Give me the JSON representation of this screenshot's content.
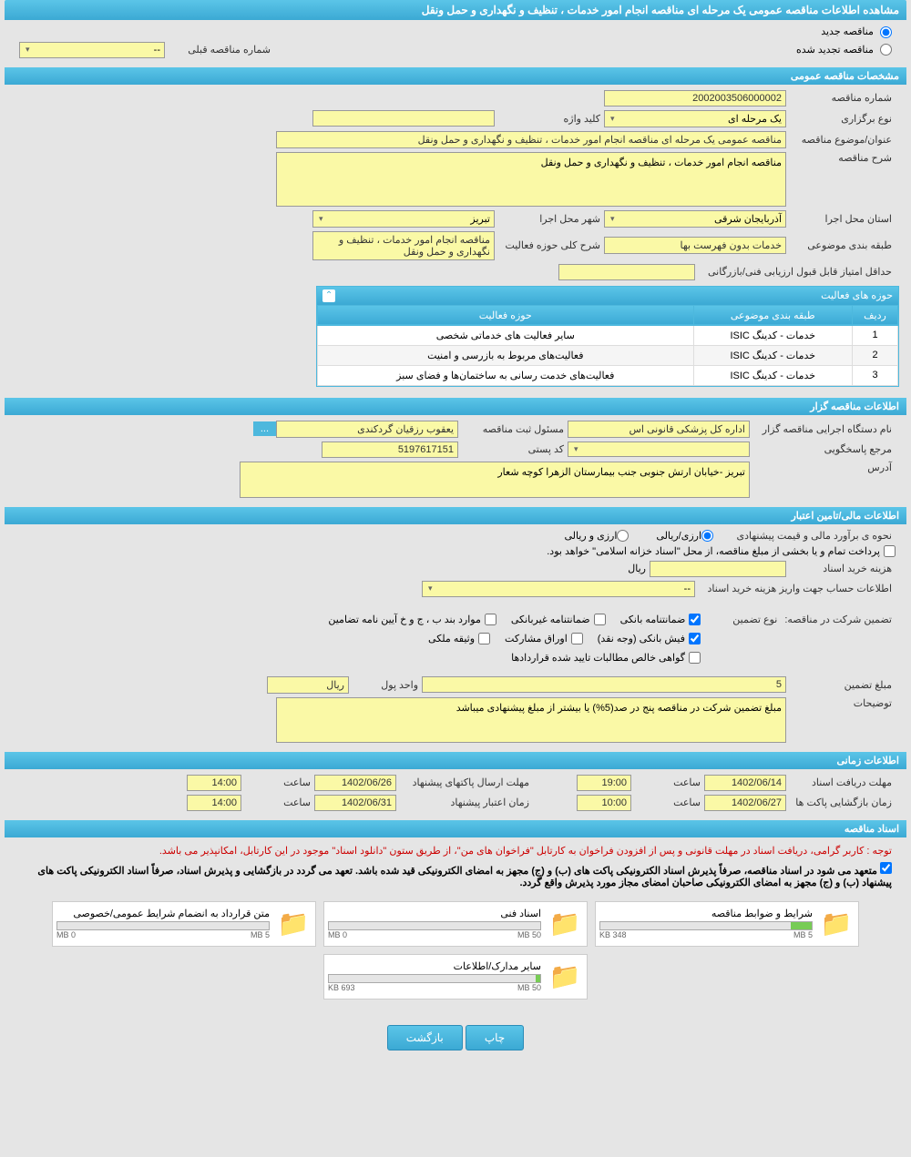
{
  "title": "مشاهده اطلاعات مناقصه عمومی یک مرحله ای مناقصه انجام امور خدمات ، تنظیف و نگهداری و حمل ونقل",
  "radios": {
    "new": "مناقصه جدید",
    "renewed": "مناقصه تجدید شده",
    "prev_label": "شماره مناقصه قبلی",
    "prev_value": "--"
  },
  "sections": {
    "general": "مشخصات مناقصه عمومی",
    "activities": "حوزه های فعالیت",
    "holder": "اطلاعات مناقصه گزار",
    "financial": "اطلاعات مالی/تامین اعتبار",
    "time": "اطلاعات زمانی",
    "docs": "اسناد مناقصه"
  },
  "general": {
    "number_label": "شماره مناقصه",
    "number": "2002003506000002",
    "type_label": "نوع برگزاری",
    "type": "یک مرحله ای",
    "keyword_label": "کلید واژه",
    "keyword": "",
    "subject_label": "عنوان/موضوع مناقصه",
    "subject": "مناقصه عمومی یک مرحله ای مناقصه انجام امور خدمات ، تنظیف و نگهداری و حمل ونقل",
    "desc_label": "شرح مناقصه",
    "desc": "مناقصه انجام امور خدمات ، تنظیف و نگهداری و حمل ونقل",
    "province_label": "استان محل اجرا",
    "province": "آذربایجان شرقی",
    "city_label": "شهر محل اجرا",
    "city": "تبریز",
    "category_label": "طبقه بندی موضوعی",
    "category": "خدمات بدون فهرست بها",
    "activity_scope_label": "شرح کلی حوزه فعالیت",
    "activity_scope": "مناقصه انجام امور خدمات ، تنظیف و نگهداری و حمل ونقل",
    "min_score_label": "حداقل امتیاز قابل قبول ارزیابی فنی/بازرگانی",
    "min_score": ""
  },
  "activity_table": {
    "col_row": "ردیف",
    "col_category": "طبقه بندی موضوعی",
    "col_scope": "حوزه فعالیت",
    "rows": [
      {
        "i": "1",
        "cat": "خدمات - کدینگ ISIC",
        "scope": "سایر فعالیت های خدماتی شخصی"
      },
      {
        "i": "2",
        "cat": "خدمات - کدینگ ISIC",
        "scope": "فعالیت‌های مربوط به بازرسی و امنیت"
      },
      {
        "i": "3",
        "cat": "خدمات - کدینگ ISIC",
        "scope": "فعالیت‌های خدمت رسانی به ساختمان‌ها و فضای سبز"
      }
    ]
  },
  "holder": {
    "org_label": "نام دستگاه اجرایی مناقصه گزار",
    "org": "اداره کل پزشکی قانونی اس",
    "resp_label": "مسئول ثبت مناقصه",
    "resp": "یعقوب رزقیان گردکندی",
    "ref_label": "مرجع پاسخگویی",
    "ref": "",
    "postal_label": "کد پستی",
    "postal": "5197617151",
    "address_label": "آدرس",
    "address": "تبریز -خیابان ارتش جنوبی جنب بیمارستان الزهرا کوچه شعار",
    "more": "..."
  },
  "financial": {
    "estimate_label": "نحوه ی برآورد مالی و قیمت پیشنهادی",
    "opt_arz_rial": "ارزی/ریالی",
    "opt_arz_and_rial": "ارزی و ریالی",
    "note": "پرداخت تمام و یا بخشی از مبلغ مناقصه، از محل \"اسناد خزانه اسلامی\" خواهد بود.",
    "fee_label": "هزینه خرید اسناد",
    "fee": "",
    "fee_unit": "ریال",
    "account_label": "اطلاعات حساب جهت واریز هزینه خرید اسناد",
    "account": "--",
    "guarantee_label": "تضمین شرکت در مناقصه:",
    "guarantee_type_label": "نوع تضمین",
    "g_bank": "ضمانتنامه بانکی",
    "g_nonbank": "ضمانتنامه غیربانکی",
    "g_clauses": "موارد بند ب ، ج و خ آیین نامه تضامین",
    "g_cash": "فیش بانکی (وجه نقد)",
    "g_securities": "اوراق مشارکت",
    "g_property": "وثیقه ملکی",
    "g_receivables": "گواهی خالص مطالبات تایید شده قراردادها",
    "amount_label": "مبلغ تضمین",
    "amount": "5",
    "amount_unit_label": "واحد پول",
    "amount_unit": "ریال",
    "notes_label": "توضیحات",
    "notes": "مبلغ تضمین شرکت در مناقصه پنج در صد(5%) یا بیشتر از مبلغ پیشنهادی  میباشد"
  },
  "time": {
    "doc_deadline_label": "مهلت دریافت اسناد",
    "doc_deadline_date": "1402/06/14",
    "time_label": "ساعت",
    "doc_deadline_time": "19:00",
    "packet_deadline_label": "مهلت ارسال پاکتهای پیشنهاد",
    "packet_deadline_date": "1402/06/26",
    "packet_deadline_time": "14:00",
    "open_label": "زمان بازگشایی پاکت ها",
    "open_date": "1402/06/27",
    "open_time": "10:00",
    "validity_label": "زمان اعتبار پیشنهاد",
    "validity_date": "1402/06/31",
    "validity_time": "14:00"
  },
  "docs": {
    "note1": "توجه : کاربر گرامی، دریافت اسناد در مهلت قانونی و پس از افزودن فراخوان به کارتابل \"فراخوان های من\"، از طریق ستون \"دانلود اسناد\" موجود در این کارتابل، امکانپذیر می باشد.",
    "note2": "متعهد می شود در اسناد مناقصه، صرفاً پذیرش اسناد الکترونیکی پاکت های (ب) و (ج) مجهز به امضای الکترونیکی قید شده باشد. تعهد می گردد در بازگشایی و پذیرش اسناد، صرفاً اسناد الکترونیکی پاکت های پیشنهاد (ب) و (ج) مجهز به امضای الکترونیکی صاحبان امضای مجاز مورد پذیرش واقع گردد.",
    "cards": [
      {
        "title": "شرایط و ضوابط مناقصه",
        "used": "348 KB",
        "max": "5 MB",
        "fill": 10
      },
      {
        "title": "اسناد فنی",
        "used": "0 MB",
        "max": "50 MB",
        "fill": 0
      },
      {
        "title": "متن قرارداد به انضمام شرایط عمومی/خصوصی",
        "used": "0 MB",
        "max": "5 MB",
        "fill": 0
      },
      {
        "title": "سایر مدارک/اطلاعات",
        "used": "693 KB",
        "max": "50 MB",
        "fill": 2
      }
    ]
  },
  "buttons": {
    "print": "چاپ",
    "back": "بازگشت"
  }
}
